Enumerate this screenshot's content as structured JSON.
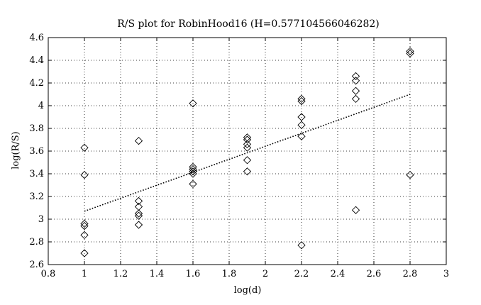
{
  "chart_data": {
    "type": "scatter",
    "title": "R/S plot for RobinHood16 (H=0.577104566046282)",
    "xlabel": "log(d)",
    "ylabel": "log(R/S)",
    "xlim": [
      0.8,
      3
    ],
    "ylim": [
      2.6,
      4.6
    ],
    "xticks": [
      0.8,
      1,
      1.2,
      1.4,
      1.6,
      1.8,
      2,
      2.2,
      2.4,
      2.6,
      2.8,
      3
    ],
    "yticks": [
      2.6,
      2.8,
      3,
      3.2,
      3.4,
      3.6,
      3.8,
      4,
      4.2,
      4.4,
      4.6
    ],
    "xtick_labels": [
      "0.8",
      "1",
      "1.2",
      "1.4",
      "1.6",
      "1.8",
      "2",
      "2.2",
      "2.4",
      "2.6",
      "2.8",
      "3"
    ],
    "ytick_labels": [
      "2.6",
      "2.8",
      "3",
      "3.2",
      "3.4",
      "3.6",
      "3.8",
      "4",
      "4.2",
      "4.4",
      "4.6"
    ],
    "grid": true,
    "marker": "diamond",
    "points": [
      [
        1,
        2.7
      ],
      [
        1,
        2.86
      ],
      [
        1,
        2.94
      ],
      [
        1,
        2.96
      ],
      [
        1,
        3.39
      ],
      [
        1,
        3.63
      ],
      [
        1.3,
        2.95
      ],
      [
        1.3,
        3.03
      ],
      [
        1.3,
        3.05
      ],
      [
        1.3,
        3.11
      ],
      [
        1.3,
        3.16
      ],
      [
        1.3,
        3.69
      ],
      [
        1.6,
        3.31
      ],
      [
        1.6,
        3.4
      ],
      [
        1.6,
        3.42
      ],
      [
        1.6,
        3.44
      ],
      [
        1.6,
        3.46
      ],
      [
        1.6,
        4.02
      ],
      [
        1.9,
        3.42
      ],
      [
        1.9,
        3.52
      ],
      [
        1.9,
        3.63
      ],
      [
        1.9,
        3.66
      ],
      [
        1.9,
        3.7
      ],
      [
        1.9,
        3.72
      ],
      [
        2.2,
        2.77
      ],
      [
        2.2,
        3.73
      ],
      [
        2.2,
        3.83
      ],
      [
        2.2,
        3.9
      ],
      [
        2.2,
        4.04
      ],
      [
        2.2,
        4.06
      ],
      [
        2.5,
        3.08
      ],
      [
        2.5,
        4.06
      ],
      [
        2.5,
        4.13
      ],
      [
        2.5,
        4.22
      ],
      [
        2.5,
        4.26
      ],
      [
        2.8,
        3.39
      ],
      [
        2.8,
        4.46
      ],
      [
        2.8,
        4.48
      ]
    ],
    "fit_line": {
      "style": "dotted",
      "x": [
        1,
        2.8
      ],
      "y": [
        3.07,
        4.1
      ]
    }
  }
}
